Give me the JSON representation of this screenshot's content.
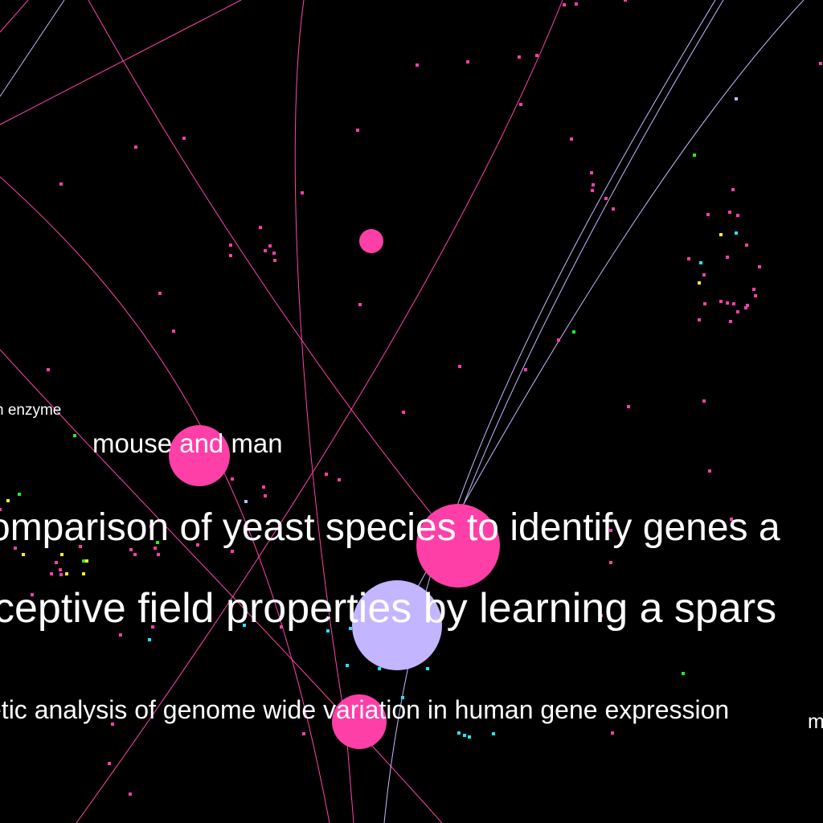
{
  "colors": {
    "background": "#000000",
    "edge_pink": "#ff44aa",
    "edge_lavender": "#c8b8ff",
    "node_pink": "#ff3fa8",
    "node_lavender": "#c3b5ff",
    "dot_cyan": "#22e6ff",
    "dot_yellow": "#ffee22",
    "dot_green": "#22ee22",
    "label": "#ffffff"
  },
  "labels": {
    "enzyme": "n enzyme",
    "mouse": "mouse and man",
    "yeast": "omparison of yeast species to identify genes a",
    "receptive": "ceptive field properties by learning a spars",
    "genetic": "etic analysis of genome wide variation in human gene expression",
    "m": "m"
  }
}
